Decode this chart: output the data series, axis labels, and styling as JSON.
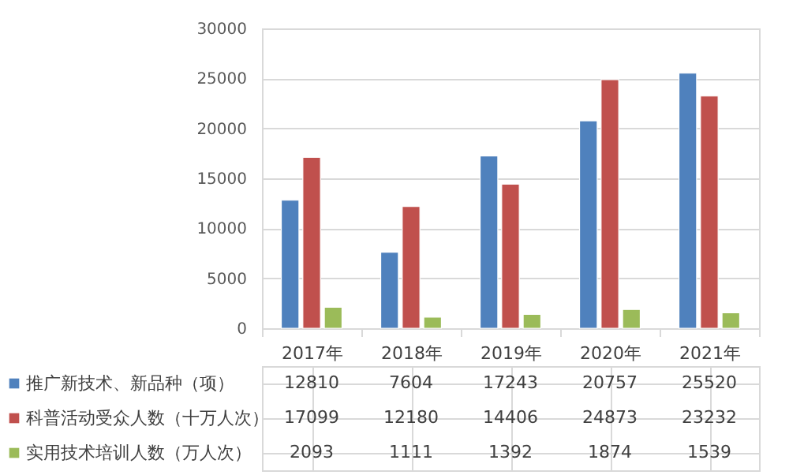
{
  "chart_data": {
    "type": "bar",
    "categories": [
      "2017年",
      "2018年",
      "2019年",
      "2020年",
      "2021年"
    ],
    "series": [
      {
        "name": "推广新技术、新品种（项）",
        "color": "#4f81bd",
        "values": [
          12810,
          7604,
          17243,
          20757,
          25520
        ]
      },
      {
        "name": "科普活动受众人数（十万人次）",
        "color": "#c0504d",
        "values": [
          17099,
          12180,
          14406,
          24873,
          23232
        ]
      },
      {
        "name": "实用技术培训人数（万人次）",
        "color": "#9bbb59",
        "values": [
          2093,
          1111,
          1392,
          1874,
          1539
        ]
      }
    ],
    "ylim": [
      0,
      30000
    ],
    "yticks": [
      0,
      5000,
      10000,
      15000,
      20000,
      25000,
      30000
    ],
    "grid": "y",
    "legend": "bottom",
    "data_labels": true
  }
}
